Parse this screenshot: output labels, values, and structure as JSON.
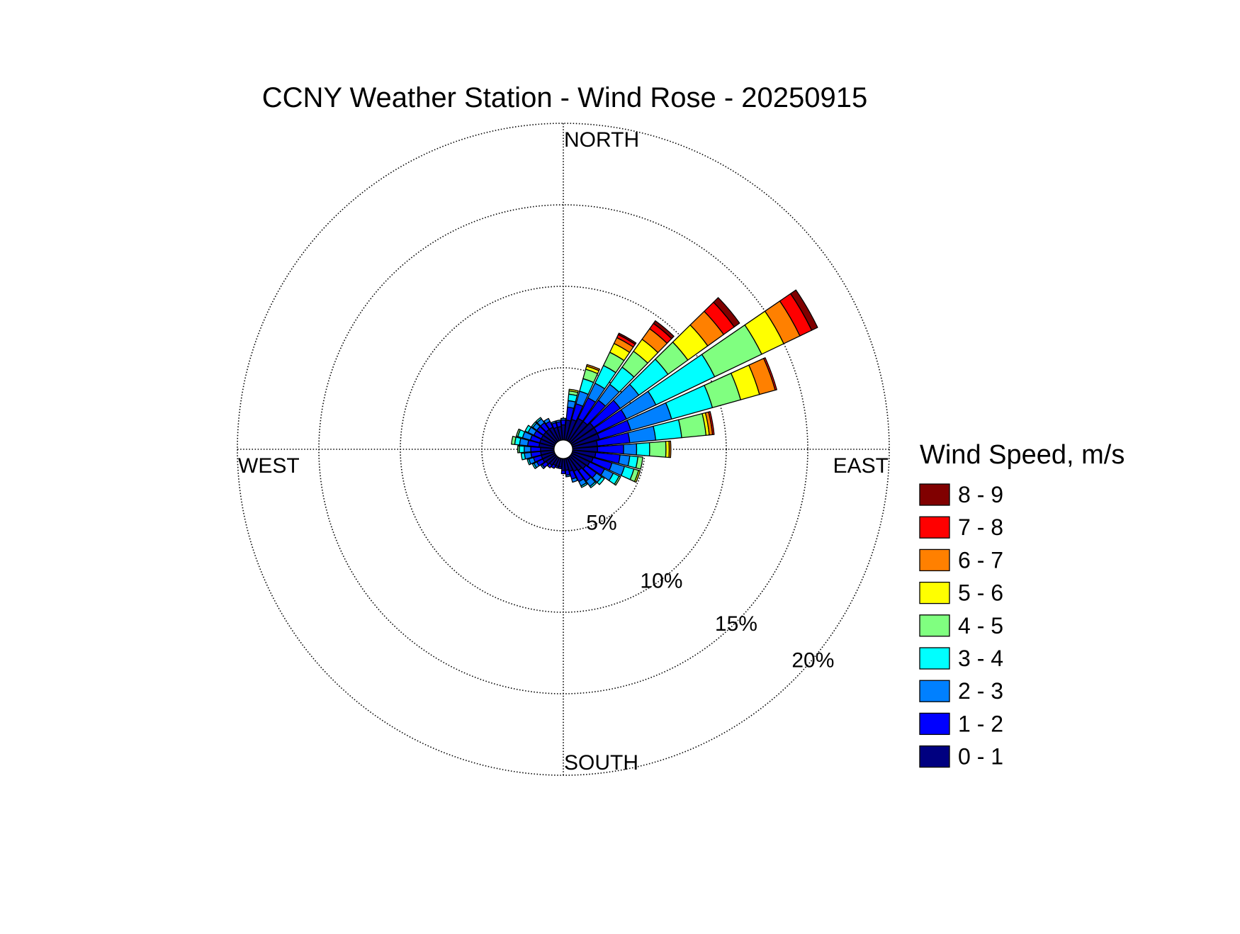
{
  "chart_data": {
    "type": "windrose",
    "title": "CCNY Weather Station - Wind Rose - 20250915",
    "direction_labels": {
      "north": "NORTH",
      "south": "SOUTH",
      "east": "EAST",
      "west": "WEST"
    },
    "radial_axis": {
      "unit": "%",
      "max": 20,
      "rings": [
        5,
        10,
        15,
        20
      ],
      "ring_labels": [
        "5%",
        "10%",
        "15%",
        "20%"
      ]
    },
    "legend": {
      "title": "Wind Speed, m/s",
      "placement": "right",
      "bins": [
        {
          "label": "8 - 9",
          "color": "#800000"
        },
        {
          "label": "7 - 8",
          "color": "#ff0000"
        },
        {
          "label": "6 - 7",
          "color": "#ff8000"
        },
        {
          "label": "5 - 6",
          "color": "#ffff00"
        },
        {
          "label": "4 - 5",
          "color": "#80ff80"
        },
        {
          "label": "3 - 4",
          "color": "#00ffff"
        },
        {
          "label": "2 - 3",
          "color": "#0080ff"
        },
        {
          "label": "1 - 2",
          "color": "#0000ff"
        },
        {
          "label": "0 - 1",
          "color": "#000080"
        }
      ]
    },
    "bin_order": [
      "0 - 1",
      "1 - 2",
      "2 - 3",
      "3 - 4",
      "4 - 5",
      "5 - 6",
      "6 - 7",
      "7 - 8",
      "8 - 9"
    ],
    "sector_width_deg": 10,
    "calm_circle_pct": 0.5,
    "sectors": [
      {
        "dir": 0,
        "values": [
          1.0,
          0.3,
          0.1,
          0,
          0,
          0,
          0,
          0,
          0
        ]
      },
      {
        "dir": 10,
        "values": [
          1.3,
          0.8,
          0.4,
          0.4,
          0.2,
          0.1,
          0,
          0,
          0
        ]
      },
      {
        "dir": 20,
        "values": [
          1.4,
          1.0,
          0.8,
          0.8,
          0.6,
          0.2,
          0.1,
          0,
          0
        ]
      },
      {
        "dir": 30,
        "values": [
          1.6,
          1.4,
          1.0,
          1.2,
          0.9,
          0.6,
          0.4,
          0.2,
          0.1
        ]
      },
      {
        "dir": 40,
        "values": [
          1.6,
          1.6,
          1.2,
          1.3,
          1.2,
          0.9,
          0.8,
          0.4,
          0.2
        ]
      },
      {
        "dir": 50,
        "values": [
          1.8,
          2.0,
          1.4,
          2.2,
          1.5,
          1.5,
          1.2,
          0.8,
          0.4
        ]
      },
      {
        "dir": 60,
        "values": [
          1.8,
          2.0,
          2.0,
          4.0,
          3.2,
          1.5,
          1.1,
          0.8,
          0.4
        ]
      },
      {
        "dir": 70,
        "values": [
          1.8,
          2.0,
          2.6,
          2.6,
          1.8,
          1.2,
          1.0,
          0.1,
          0
        ]
      },
      {
        "dir": 80,
        "values": [
          1.6,
          2.0,
          1.6,
          1.6,
          1.5,
          0.2,
          0.2,
          0.1,
          0
        ]
      },
      {
        "dir": 90,
        "values": [
          1.6,
          1.6,
          0.8,
          0.8,
          1.0,
          0.2,
          0.1,
          0,
          0
        ]
      },
      {
        "dir": 100,
        "values": [
          1.5,
          1.5,
          0.6,
          0.5,
          0.3,
          0,
          0,
          0,
          0
        ]
      },
      {
        "dir": 110,
        "values": [
          1.4,
          1.2,
          0.8,
          0.6,
          0.3,
          0.1,
          0,
          0,
          0
        ]
      },
      {
        "dir": 120,
        "values": [
          1.3,
          1.0,
          0.6,
          0.4,
          0.1,
          0,
          0,
          0,
          0
        ]
      },
      {
        "dir": 130,
        "values": [
          1.2,
          0.8,
          0.4,
          0.2,
          0,
          0,
          0,
          0,
          0
        ]
      },
      {
        "dir": 140,
        "values": [
          1.1,
          0.8,
          0.4,
          0.1,
          0,
          0,
          0,
          0,
          0
        ]
      },
      {
        "dir": 150,
        "values": [
          1.0,
          0.7,
          0.3,
          0.1,
          0,
          0,
          0,
          0,
          0
        ]
      },
      {
        "dir": 160,
        "values": [
          0.9,
          0.5,
          0.2,
          0,
          0,
          0,
          0,
          0,
          0
        ]
      },
      {
        "dir": 170,
        "values": [
          0.8,
          0.3,
          0.1,
          0,
          0,
          0,
          0,
          0,
          0
        ]
      },
      {
        "dir": 180,
        "values": [
          0.8,
          0.2,
          0,
          0,
          0,
          0,
          0,
          0,
          0
        ]
      },
      {
        "dir": 190,
        "values": [
          0.6,
          0.1,
          0,
          0,
          0,
          0,
          0,
          0,
          0
        ]
      },
      {
        "dir": 200,
        "values": [
          0.6,
          0.1,
          0,
          0,
          0,
          0,
          0,
          0,
          0
        ]
      },
      {
        "dir": 210,
        "values": [
          0.6,
          0.2,
          0,
          0,
          0,
          0,
          0,
          0,
          0
        ]
      },
      {
        "dir": 220,
        "values": [
          0.7,
          0.2,
          0,
          0,
          0,
          0,
          0,
          0,
          0
        ]
      },
      {
        "dir": 230,
        "values": [
          0.8,
          0.3,
          0.1,
          0,
          0,
          0,
          0,
          0,
          0
        ]
      },
      {
        "dir": 240,
        "values": [
          0.9,
          0.4,
          0.2,
          0.1,
          0,
          0,
          0,
          0,
          0
        ]
      },
      {
        "dir": 250,
        "values": [
          0.9,
          0.5,
          0.3,
          0.1,
          0,
          0,
          0,
          0,
          0
        ]
      },
      {
        "dir": 260,
        "values": [
          0.9,
          0.6,
          0.4,
          0.2,
          0,
          0,
          0,
          0,
          0
        ]
      },
      {
        "dir": 270,
        "values": [
          0.9,
          0.6,
          0.4,
          0.3,
          0.1,
          0,
          0,
          0,
          0
        ]
      },
      {
        "dir": 280,
        "values": [
          1.0,
          0.7,
          0.5,
          0.3,
          0.2,
          0,
          0,
          0,
          0
        ]
      },
      {
        "dir": 290,
        "values": [
          1.0,
          0.6,
          0.5,
          0.3,
          0.1,
          0,
          0,
          0,
          0
        ]
      },
      {
        "dir": 300,
        "values": [
          1.0,
          0.5,
          0.4,
          0.2,
          0,
          0,
          0,
          0,
          0
        ]
      },
      {
        "dir": 310,
        "values": [
          1.0,
          0.5,
          0.3,
          0.1,
          0,
          0,
          0,
          0,
          0
        ]
      },
      {
        "dir": 320,
        "values": [
          1.0,
          0.5,
          0.3,
          0.1,
          0,
          0,
          0,
          0,
          0
        ]
      },
      {
        "dir": 330,
        "values": [
          1.0,
          0.4,
          0.2,
          0,
          0,
          0,
          0,
          0,
          0
        ]
      },
      {
        "dir": 340,
        "values": [
          0.9,
          0.3,
          0.1,
          0,
          0,
          0,
          0,
          0,
          0
        ]
      },
      {
        "dir": 350,
        "values": [
          0.9,
          0.3,
          0.1,
          0,
          0,
          0,
          0,
          0,
          0
        ]
      }
    ]
  }
}
